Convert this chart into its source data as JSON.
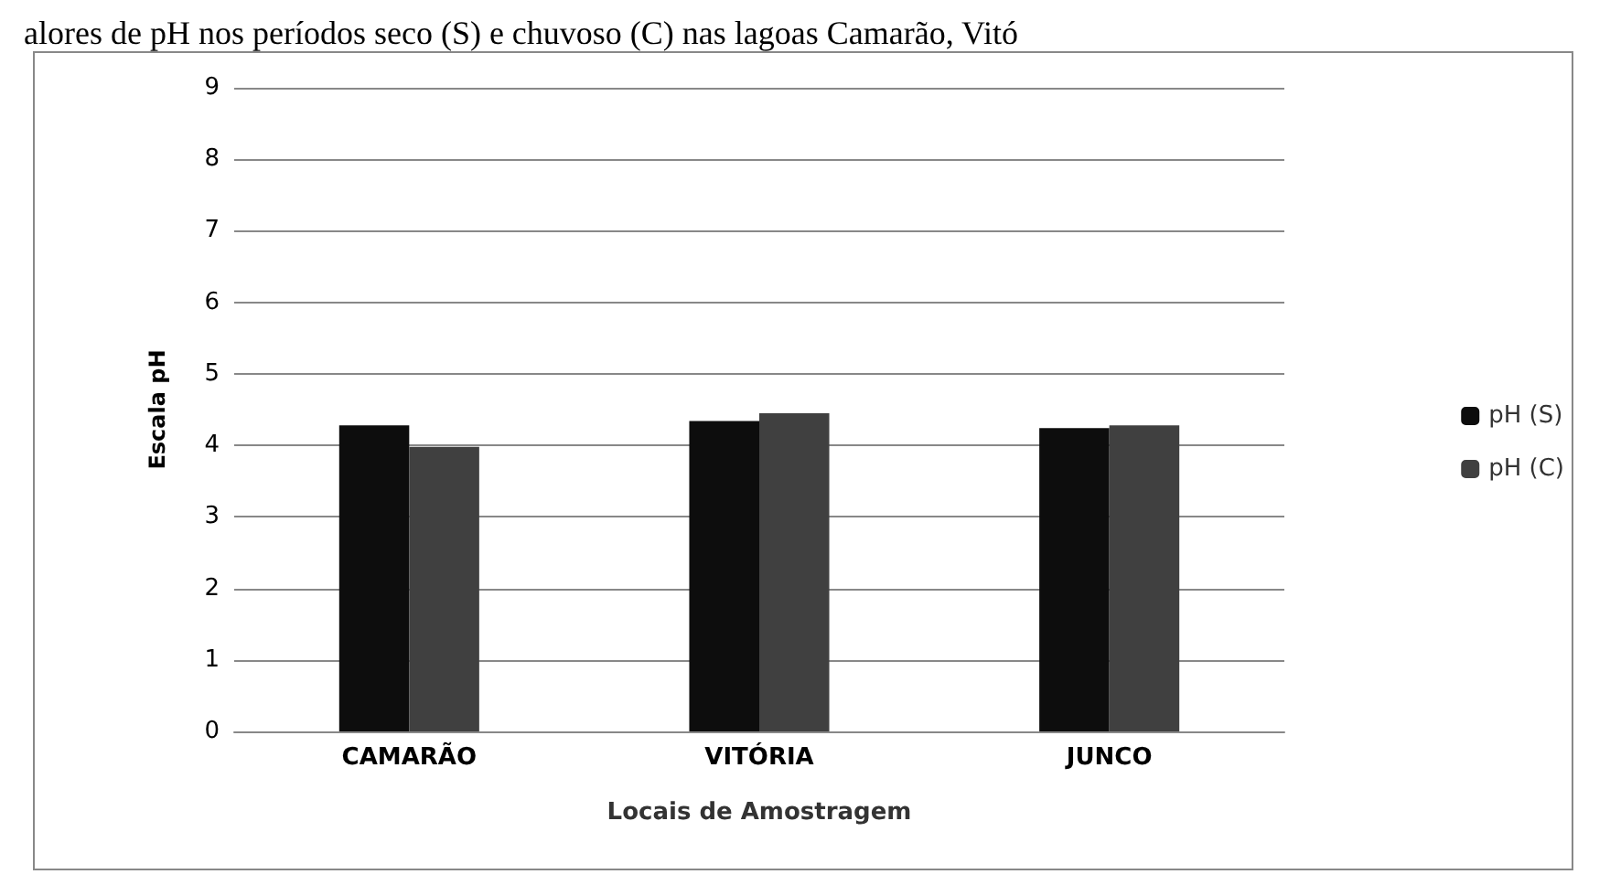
{
  "chart_data": {
    "type": "bar",
    "title": "alores de pH nos períodos seco (S) e chuvoso (C) nas lagoas Camarão, Vitó",
    "xlabel": "Locais de Amostragem",
    "ylabel": "Escala pH",
    "categories": [
      "CAMARÃO",
      "VITÓRIA",
      "JUNCO"
    ],
    "series": [
      {
        "name": "pH (S)",
        "color": "#0d0d0d",
        "values": [
          4.28,
          4.34,
          4.24
        ]
      },
      {
        "name": "pH (C)",
        "color": "#404040",
        "values": [
          3.98,
          4.45,
          4.28
        ]
      }
    ],
    "ylim": [
      0,
      9
    ],
    "yticks": [
      0,
      1,
      2,
      3,
      4,
      5,
      6,
      7,
      8,
      9
    ],
    "grid": "y",
    "legend": "right"
  }
}
